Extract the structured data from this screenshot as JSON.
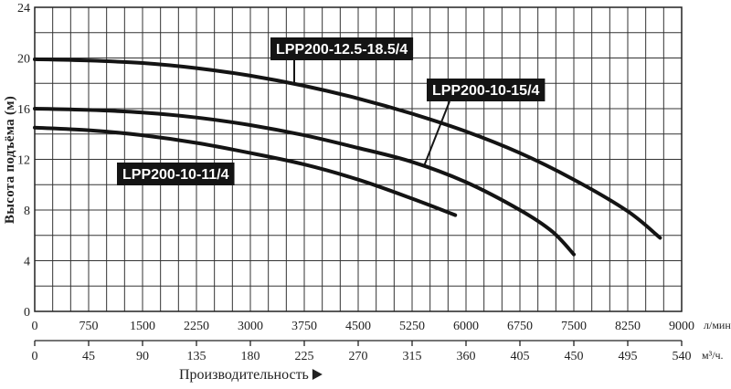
{
  "chart_data": {
    "type": "line",
    "ylabel": "Высота подъёма (м)",
    "xlabel": "Производительность",
    "x_unit": "л/мин.",
    "x2_unit": "м³/ч.",
    "ylim": [
      0,
      24
    ],
    "xlim": [
      0,
      9000
    ],
    "x2lim": [
      0,
      540
    ],
    "grid": true,
    "y_ticks": [
      "0",
      "4",
      "8",
      "12",
      "16",
      "20",
      "24"
    ],
    "x_ticks": [
      "0",
      "750",
      "1500",
      "2250",
      "3000",
      "3750",
      "4500",
      "5250",
      "6000",
      "6750",
      "7500",
      "8250",
      "9000"
    ],
    "x2_ticks": [
      "0",
      "45",
      "90",
      "135",
      "180",
      "225",
      "270",
      "315",
      "360",
      "405",
      "450",
      "495",
      "540"
    ],
    "series": [
      {
        "name": "LPP200-12.5-18.5/4",
        "x": [
          0,
          750,
          1500,
          2250,
          3000,
          3750,
          4500,
          5250,
          6000,
          6750,
          7500,
          8250,
          8700
        ],
        "y": [
          19.9,
          19.8,
          19.6,
          19.2,
          18.6,
          17.8,
          16.8,
          15.6,
          14.2,
          12.5,
          10.4,
          7.9,
          5.8
        ]
      },
      {
        "name": "LPP200-10-15/4",
        "x": [
          0,
          750,
          1500,
          2250,
          3000,
          3750,
          4500,
          5250,
          6000,
          6750,
          7200,
          7500
        ],
        "y": [
          16.0,
          15.9,
          15.7,
          15.3,
          14.7,
          13.9,
          12.9,
          11.8,
          10.2,
          8.0,
          6.3,
          4.5
        ]
      },
      {
        "name": "LPP200-10-11/4",
        "x": [
          0,
          750,
          1500,
          2250,
          3000,
          3750,
          4500,
          5250,
          5850
        ],
        "y": [
          14.5,
          14.3,
          13.9,
          13.3,
          12.5,
          11.6,
          10.4,
          8.9,
          7.6
        ]
      }
    ]
  }
}
